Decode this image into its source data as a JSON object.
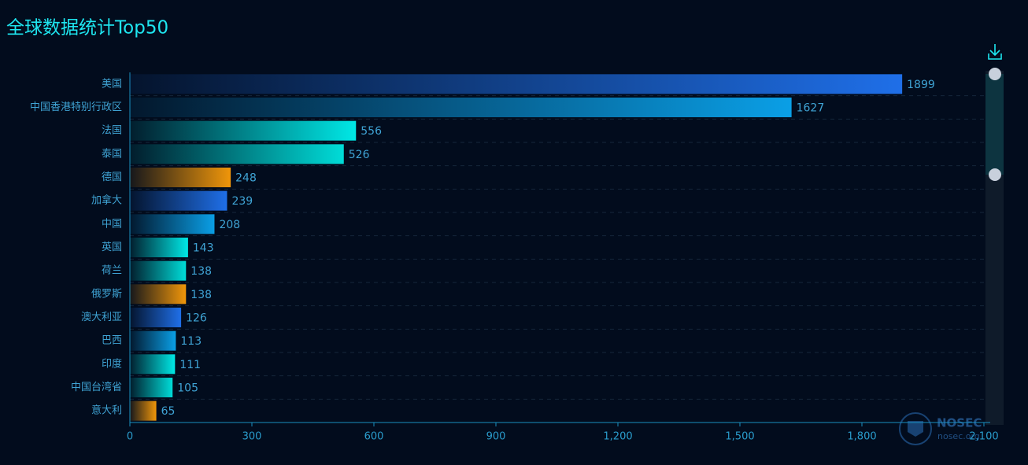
{
  "chart_data": {
    "type": "bar",
    "orientation": "horizontal",
    "title": "全球数据统计Top50",
    "categories": [
      "美国",
      "中国香港特别行政区",
      "法国",
      "泰国",
      "德国",
      "加拿大",
      "中国",
      "英国",
      "荷兰",
      "俄罗斯",
      "澳大利亚",
      "巴西",
      "印度",
      "中国台湾省",
      "意大利"
    ],
    "values": [
      1899,
      1627,
      556,
      526,
      248,
      239,
      208,
      143,
      138,
      138,
      126,
      113,
      111,
      105,
      65
    ],
    "colors": [
      "#1f6fe8",
      "#0a9fe6",
      "#00e8e6",
      "#00dcd8",
      "#f0960a"
    ],
    "xlim": [
      0,
      2100
    ],
    "xticks": [
      0,
      300,
      600,
      900,
      {
        "value": 1200,
        "label": "1,200"
      },
      {
        "value": 1500,
        "label": "1,500"
      },
      {
        "value": 1800,
        "label": "1,800"
      },
      {
        "value": 2100,
        "label": "2,100"
      }
    ],
    "watermark": {
      "brand": "NOSEC",
      "site": "nosec.org"
    }
  }
}
